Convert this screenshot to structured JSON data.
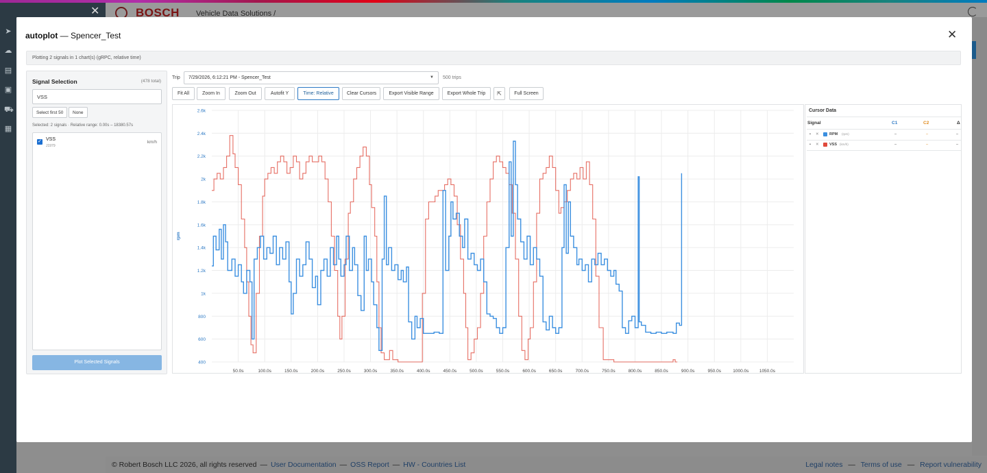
{
  "background": {
    "brand": "BOSCH",
    "app_title": "Vehicle Data Solutions  /",
    "footer": {
      "copyright": "© Robert Bosch LLC 2026, all rights reserved",
      "links": [
        "User Documentation",
        "OSS Report",
        "HW - Countries List"
      ],
      "right_links": [
        "Legal notes",
        "Terms of use",
        "Report vulnerability"
      ]
    }
  },
  "modal": {
    "title_bold": "autoplot",
    "title_rest": " — Spencer_Test",
    "info": "Plotting 2 signals in 1 chart(s) (gRPC, relative time)"
  },
  "signal_selection": {
    "title": "Signal Selection",
    "total": "(478 total)",
    "search_value": "VSS",
    "select_first_label": "Select first 50",
    "none_label": "None",
    "range_text": "Selected: 2 signals · Relative range: 0.00s – 18380.57s",
    "items": [
      {
        "name": "VSS",
        "source": "J1979",
        "unit": "km/h",
        "checked": true
      }
    ],
    "plot_button": "Plot Selected Signals"
  },
  "toolbar": {
    "trip_label": "Trip",
    "trip_value": "7/29/2026, 6:12:21 PM - Spencer_Test",
    "trip_count": "500 trips",
    "buttons": [
      "Fit All",
      "Zoom In",
      "Zoom Out",
      "Autofit Y",
      "Time: Relative",
      "Clear Cursors",
      "Export Visible Range",
      "Export Whole Trip"
    ],
    "fullscreen": "Full Screen"
  },
  "cursor_data": {
    "title": "Cursor Data",
    "col_signal": "Signal",
    "col_c1": "C1",
    "col_c2": "C2",
    "col_delta": "Δ",
    "rows": [
      {
        "name": "RPM",
        "unit": "(rpm)",
        "c1": "–",
        "c2": "–",
        "delta": "–",
        "color": "#3b8fe0"
      },
      {
        "name": "VSS",
        "unit": "(km/h)",
        "c1": "–",
        "c2": "–",
        "delta": "–",
        "color": "#e04a3c"
      }
    ],
    "c1_color": "#2b78c4",
    "c2_color": "#e08a1c"
  },
  "chart_data": {
    "type": "line",
    "ylabel": "rpm",
    "ylim": [
      400,
      2600
    ],
    "y_ticks": [
      "400",
      "600",
      "800",
      "1k",
      "1.2k",
      "1.4k",
      "1.6k",
      "1.8k",
      "2k",
      "2.2k",
      "2.4k",
      "2.6k"
    ],
    "xlim": [
      0,
      1100
    ],
    "x_ticks": [
      "50.0s",
      "100.0s",
      "150.0s",
      "200.0s",
      "250.0s",
      "300.0s",
      "350.0s",
      "400.0s",
      "450.0s",
      "500.0s",
      "550.0s",
      "600.0s",
      "650.0s",
      "700.0s",
      "750.0s",
      "800.0s",
      "850.0s",
      "900.0s",
      "950.0s",
      "1000.0s",
      "1050.0s"
    ],
    "grid": true,
    "series": [
      {
        "name": "RPM",
        "color": "#3b8fe0",
        "points": [
          [
            0,
            1240
          ],
          [
            3,
            1500
          ],
          [
            8,
            1380
          ],
          [
            14,
            1560
          ],
          [
            18,
            1300
          ],
          [
            22,
            1600
          ],
          [
            26,
            1450
          ],
          [
            30,
            1200
          ],
          [
            38,
            1300
          ],
          [
            44,
            1150
          ],
          [
            50,
            1250
          ],
          [
            56,
            1100
          ],
          [
            60,
            1000
          ],
          [
            66,
            1200
          ],
          [
            72,
            1100
          ],
          [
            76,
            600
          ],
          [
            80,
            1300
          ],
          [
            86,
            1400
          ],
          [
            92,
            1500
          ],
          [
            98,
            1300
          ],
          [
            104,
            1400
          ],
          [
            110,
            1350
          ],
          [
            116,
            1500
          ],
          [
            122,
            1250
          ],
          [
            128,
            1400
          ],
          [
            134,
            1300
          ],
          [
            140,
            1450
          ],
          [
            146,
            1100
          ],
          [
            150,
            820
          ],
          [
            154,
            1000
          ],
          [
            160,
            1300
          ],
          [
            166,
            1150
          ],
          [
            172,
            1250
          ],
          [
            178,
            1450
          ],
          [
            184,
            1300
          ],
          [
            190,
            1050
          ],
          [
            196,
            1150
          ],
          [
            200,
            900
          ],
          [
            206,
            1200
          ],
          [
            212,
            1300
          ],
          [
            218,
            1150
          ],
          [
            224,
            1400
          ],
          [
            230,
            1250
          ],
          [
            236,
            1500
          ],
          [
            240,
            1300
          ],
          [
            244,
            1150
          ],
          [
            250,
            1250
          ],
          [
            254,
            1500
          ],
          [
            260,
            1200
          ],
          [
            266,
            1400
          ],
          [
            270,
            1250
          ],
          [
            276,
            980
          ],
          [
            282,
            850
          ],
          [
            288,
            1500
          ],
          [
            292,
            1200
          ],
          [
            296,
            1300
          ],
          [
            302,
            1100
          ],
          [
            306,
            900
          ],
          [
            312,
            700
          ],
          [
            316,
            500
          ],
          [
            322,
            1300
          ],
          [
            326,
            1850
          ],
          [
            330,
            1250
          ],
          [
            334,
            1400
          ],
          [
            340,
            1200
          ],
          [
            346,
            1250
          ],
          [
            352,
            1120
          ],
          [
            358,
            1200
          ],
          [
            362,
            1100
          ],
          [
            368,
            1230
          ],
          [
            372,
            750
          ],
          [
            378,
            600
          ],
          [
            384,
            800
          ],
          [
            388,
            700
          ],
          [
            394,
            780
          ],
          [
            400,
            650
          ],
          [
            410,
            650
          ],
          [
            420,
            660
          ],
          [
            430,
            650
          ],
          [
            437,
            1900
          ],
          [
            442,
            1200
          ],
          [
            448,
            1500
          ],
          [
            452,
            1800
          ],
          [
            456,
            1650
          ],
          [
            462,
            1700
          ],
          [
            468,
            1500
          ],
          [
            474,
            1400
          ],
          [
            478,
            1650
          ],
          [
            484,
            1300
          ],
          [
            490,
            1350
          ],
          [
            496,
            1250
          ],
          [
            502,
            1200
          ],
          [
            508,
            1300
          ],
          [
            514,
            1100
          ],
          [
            520,
            820
          ],
          [
            526,
            800
          ],
          [
            532,
            780
          ],
          [
            538,
            700
          ],
          [
            544,
            650
          ],
          [
            550,
            700
          ],
          [
            556,
            1400
          ],
          [
            562,
            2150
          ],
          [
            566,
            1500
          ],
          [
            570,
            2330
          ],
          [
            574,
            1950
          ],
          [
            578,
            1650
          ],
          [
            584,
            1450
          ],
          [
            590,
            1300
          ],
          [
            596,
            1500
          ],
          [
            602,
            1250
          ],
          [
            608,
            1400
          ],
          [
            614,
            1300
          ],
          [
            620,
            1150
          ],
          [
            626,
            750
          ],
          [
            632,
            680
          ],
          [
            638,
            800
          ],
          [
            644,
            700
          ],
          [
            650,
            650
          ],
          [
            656,
            700
          ],
          [
            662,
            1400
          ],
          [
            666,
            1950
          ],
          [
            670,
            1350
          ],
          [
            674,
            1800
          ],
          [
            678,
            1500
          ],
          [
            684,
            1400
          ],
          [
            690,
            1250
          ],
          [
            694,
            1300
          ],
          [
            700,
            1200
          ],
          [
            706,
            1250
          ],
          [
            712,
            1100
          ],
          [
            718,
            1300
          ],
          [
            724,
            1250
          ],
          [
            730,
            1350
          ],
          [
            736,
            1250
          ],
          [
            742,
            1300
          ],
          [
            748,
            1200
          ],
          [
            754,
            1150
          ],
          [
            760,
            1200
          ],
          [
            764,
            1080
          ],
          [
            770,
            1020
          ],
          [
            776,
            700
          ],
          [
            782,
            650
          ],
          [
            788,
            760
          ],
          [
            794,
            800
          ],
          [
            800,
            700
          ],
          [
            806,
            2020
          ],
          [
            808,
            750
          ],
          [
            812,
            720
          ],
          [
            820,
            660
          ],
          [
            830,
            650
          ],
          [
            840,
            660
          ],
          [
            850,
            650
          ],
          [
            860,
            660
          ],
          [
            872,
            650
          ],
          [
            878,
            740
          ],
          [
            884,
            720
          ],
          [
            888,
            2050
          ]
        ]
      },
      {
        "name": "VSS",
        "color": "#e04a3c",
        "points": [
          [
            0,
            1900
          ],
          [
            4,
            2000
          ],
          [
            10,
            2050
          ],
          [
            16,
            2000
          ],
          [
            22,
            2100
          ],
          [
            28,
            2200
          ],
          [
            34,
            2380
          ],
          [
            40,
            2220
          ],
          [
            44,
            2100
          ],
          [
            50,
            1950
          ],
          [
            56,
            1650
          ],
          [
            62,
            1400
          ],
          [
            66,
            1100
          ],
          [
            70,
            800
          ],
          [
            74,
            550
          ],
          [
            78,
            480
          ],
          [
            84,
            1000
          ],
          [
            90,
            1500
          ],
          [
            96,
            1850
          ],
          [
            100,
            2000
          ],
          [
            106,
            2050
          ],
          [
            112,
            2100
          ],
          [
            118,
            2050
          ],
          [
            124,
            2150
          ],
          [
            130,
            2200
          ],
          [
            136,
            2150
          ],
          [
            142,
            2050
          ],
          [
            148,
            2100
          ],
          [
            154,
            2200
          ],
          [
            160,
            2150
          ],
          [
            166,
            2000
          ],
          [
            172,
            2050
          ],
          [
            178,
            2150
          ],
          [
            184,
            2200
          ],
          [
            190,
            2150
          ],
          [
            196,
            2150
          ],
          [
            202,
            2200
          ],
          [
            208,
            2150
          ],
          [
            214,
            2000
          ],
          [
            220,
            1800
          ],
          [
            226,
            1500
          ],
          [
            232,
            1200
          ],
          [
            238,
            800
          ],
          [
            242,
            600
          ],
          [
            246,
            800
          ],
          [
            252,
            1300
          ],
          [
            258,
            1700
          ],
          [
            262,
            1800
          ],
          [
            268,
            2000
          ],
          [
            274,
            2100
          ],
          [
            280,
            2200
          ],
          [
            286,
            2280
          ],
          [
            292,
            2200
          ],
          [
            298,
            1950
          ],
          [
            302,
            1750
          ],
          [
            308,
            1500
          ],
          [
            312,
            1100
          ],
          [
            316,
            700
          ],
          [
            320,
            480
          ],
          [
            326,
            420
          ],
          [
            336,
            500
          ],
          [
            342,
            420
          ],
          [
            352,
            400
          ],
          [
            372,
            400
          ],
          [
            392,
            400
          ],
          [
            398,
            1000
          ],
          [
            404,
            1650
          ],
          [
            410,
            1800
          ],
          [
            416,
            1800
          ],
          [
            422,
            1850
          ],
          [
            428,
            1900
          ],
          [
            434,
            1900
          ],
          [
            440,
            1950
          ],
          [
            446,
            2000
          ],
          [
            452,
            1950
          ],
          [
            458,
            1850
          ],
          [
            464,
            1600
          ],
          [
            470,
            1300
          ],
          [
            476,
            1000
          ],
          [
            480,
            700
          ],
          [
            484,
            420
          ],
          [
            490,
            480
          ],
          [
            496,
            600
          ],
          [
            502,
            700
          ],
          [
            508,
            1000
          ],
          [
            514,
            1500
          ],
          [
            520,
            1800
          ],
          [
            526,
            2000
          ],
          [
            532,
            2150
          ],
          [
            538,
            2200
          ],
          [
            544,
            2150
          ],
          [
            550,
            2100
          ],
          [
            556,
            2050
          ],
          [
            562,
            1950
          ],
          [
            568,
            1700
          ],
          [
            574,
            1300
          ],
          [
            580,
            800
          ],
          [
            586,
            500
          ],
          [
            592,
            420
          ],
          [
            598,
            600
          ],
          [
            602,
            700
          ],
          [
            608,
            1100
          ],
          [
            614,
            1700
          ],
          [
            620,
            2000
          ],
          [
            626,
            2050
          ],
          [
            632,
            2100
          ],
          [
            638,
            2200
          ],
          [
            644,
            2100
          ],
          [
            650,
            1900
          ],
          [
            656,
            1700
          ],
          [
            660,
            1750
          ],
          [
            666,
            1800
          ],
          [
            672,
            1900
          ],
          [
            678,
            2000
          ],
          [
            684,
            2050
          ],
          [
            690,
            2000
          ],
          [
            696,
            2100
          ],
          [
            702,
            2000
          ],
          [
            708,
            2150
          ],
          [
            714,
            1950
          ],
          [
            720,
            1650
          ],
          [
            726,
            1150
          ],
          [
            732,
            700
          ],
          [
            740,
            420
          ],
          [
            760,
            400
          ],
          [
            780,
            400
          ],
          [
            800,
            400
          ],
          [
            820,
            400
          ],
          [
            840,
            400
          ],
          [
            860,
            400
          ],
          [
            872,
            420
          ],
          [
            876,
            400
          ],
          [
            880,
            400
          ]
        ]
      }
    ]
  }
}
